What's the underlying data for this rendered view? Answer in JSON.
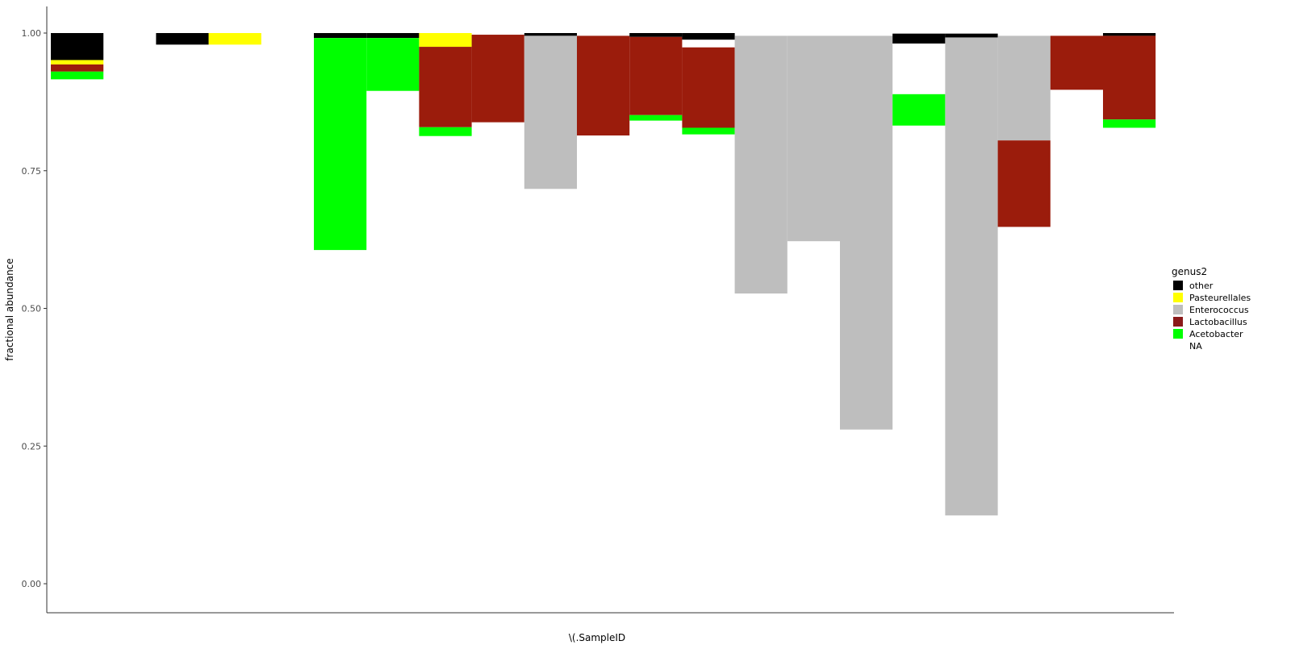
{
  "chart_data": {
    "type": "bar",
    "stacked": true,
    "xlabel": "\\(.SampleID",
    "ylabel": "fractional abundance",
    "ylim": [
      0,
      1
    ],
    "y_ticks": [
      "0.00",
      "0.25",
      "0.50",
      "0.75",
      "1.00"
    ],
    "y_tick_values": [
      0,
      0.25,
      0.5,
      0.75,
      1.0
    ],
    "grid": false,
    "legend": {
      "title": "genus2",
      "placement": "right",
      "entries": [
        {
          "label": "other",
          "color": "#000000"
        },
        {
          "label": "Pasteurellales",
          "color": "#ffff00"
        },
        {
          "label": "Enterococcus",
          "color": "#bebebe"
        },
        {
          "label": "Lactobacillus",
          "color": "#8b1a1a"
        },
        {
          "label": "Acetobacter",
          "color": "#00ff00"
        },
        {
          "label": "NA",
          "color": "#ffffff"
        }
      ]
    },
    "series_colors": {
      "other": "#000000",
      "Pasteurellales": "#ffff00",
      "Enterococcus": "#bebebe",
      "Lactobacillus": "#9b1c0c",
      "Acetobacter": "#00ff00"
    },
    "samples": [
      {
        "segments": [
          {
            "genus": "other",
            "from": 0.951,
            "to": 1.0
          },
          {
            "genus": "Pasteurellales",
            "from": 0.943,
            "to": 0.951
          },
          {
            "genus": "Lactobacillus",
            "from": 0.93,
            "to": 0.943
          },
          {
            "genus": "Acetobacter",
            "from": 0.916,
            "to": 0.93
          }
        ]
      },
      {
        "segments": []
      },
      {
        "segments": [
          {
            "genus": "other",
            "from": 0.979,
            "to": 1.0
          }
        ]
      },
      {
        "segments": [
          {
            "genus": "Pasteurellales",
            "from": 0.979,
            "to": 1.0
          }
        ]
      },
      {
        "segments": []
      },
      {
        "segments": [
          {
            "genus": "other",
            "from": 0.991,
            "to": 1.0
          },
          {
            "genus": "Acetobacter",
            "from": 0.606,
            "to": 0.991
          }
        ]
      },
      {
        "segments": [
          {
            "genus": "other",
            "from": 0.991,
            "to": 1.0
          },
          {
            "genus": "Acetobacter",
            "from": 0.895,
            "to": 0.991
          }
        ]
      },
      {
        "segments": [
          {
            "genus": "Pasteurellales",
            "from": 0.975,
            "to": 1.0
          },
          {
            "genus": "Lactobacillus",
            "from": 0.829,
            "to": 0.975
          },
          {
            "genus": "Acetobacter",
            "from": 0.813,
            "to": 0.829
          }
        ]
      },
      {
        "segments": [
          {
            "genus": "Lactobacillus",
            "from": 0.838,
            "to": 0.997
          }
        ]
      },
      {
        "segments": [
          {
            "genus": "other",
            "from": 0.995,
            "to": 1.0
          },
          {
            "genus": "Enterococcus",
            "from": 0.717,
            "to": 0.995
          }
        ]
      },
      {
        "segments": [
          {
            "genus": "Lactobacillus",
            "from": 0.814,
            "to": 0.995
          }
        ]
      },
      {
        "segments": [
          {
            "genus": "other",
            "from": 0.993,
            "to": 1.0
          },
          {
            "genus": "Lactobacillus",
            "from": 0.851,
            "to": 0.993
          },
          {
            "genus": "Acetobacter",
            "from": 0.841,
            "to": 0.851
          }
        ]
      },
      {
        "segments": [
          {
            "genus": "other",
            "from": 0.988,
            "to": 1.0
          },
          {
            "genus": "Lactobacillus",
            "from": 0.828,
            "to": 0.974
          },
          {
            "genus": "Acetobacter",
            "from": 0.816,
            "to": 0.828
          }
        ]
      },
      {
        "segments": [
          {
            "genus": "Enterococcus",
            "from": 0.527,
            "to": 0.995
          }
        ]
      },
      {
        "segments": [
          {
            "genus": "Enterococcus",
            "from": 0.622,
            "to": 0.995
          }
        ]
      },
      {
        "segments": [
          {
            "genus": "Enterococcus",
            "from": 0.28,
            "to": 0.995
          }
        ]
      },
      {
        "segments": [
          {
            "genus": "other",
            "from": 0.981,
            "to": 0.999
          },
          {
            "genus": "Acetobacter",
            "from": 0.832,
            "to": 0.889
          }
        ]
      },
      {
        "segments": [
          {
            "genus": "other",
            "from": 0.992,
            "to": 0.999
          },
          {
            "genus": "Enterococcus",
            "from": 0.124,
            "to": 0.992
          }
        ]
      },
      {
        "segments": [
          {
            "genus": "Enterococcus",
            "from": 0.805,
            "to": 0.995
          },
          {
            "genus": "Lactobacillus",
            "from": 0.648,
            "to": 0.805
          }
        ]
      },
      {
        "segments": [
          {
            "genus": "Lactobacillus",
            "from": 0.897,
            "to": 0.995
          }
        ]
      },
      {
        "segments": [
          {
            "genus": "other",
            "from": 0.995,
            "to": 1.0
          },
          {
            "genus": "Lactobacillus",
            "from": 0.843,
            "to": 0.995
          },
          {
            "genus": "Acetobacter",
            "from": 0.828,
            "to": 0.843
          }
        ]
      }
    ]
  }
}
